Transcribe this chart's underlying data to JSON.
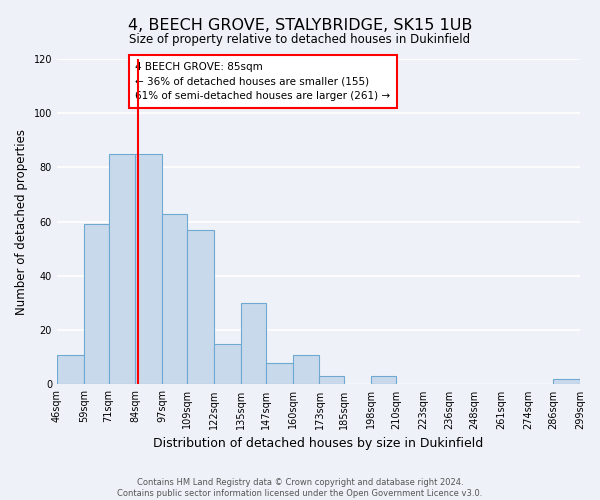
{
  "title": "4, BEECH GROVE, STALYBRIDGE, SK15 1UB",
  "subtitle": "Size of property relative to detached houses in Dukinfield",
  "xlabel": "Distribution of detached houses by size in Dukinfield",
  "ylabel": "Number of detached properties",
  "bar_edges": [
    46,
    59,
    71,
    84,
    97,
    109,
    122,
    135,
    147,
    160,
    173,
    185,
    198,
    210,
    223,
    236,
    248,
    261,
    274,
    286,
    299
  ],
  "bar_values": [
    11,
    59,
    85,
    85,
    63,
    57,
    15,
    30,
    8,
    11,
    3,
    0,
    3,
    0,
    0,
    0,
    0,
    0,
    0,
    2
  ],
  "bar_color": "#c9d9ec",
  "bar_edge_color": "#6fa8d0",
  "vline_x": 85,
  "vline_color": "red",
  "annotation_text": "4 BEECH GROVE: 85sqm\n← 36% of detached houses are smaller (155)\n61% of semi-detached houses are larger (261) →",
  "annotation_box_color": "white",
  "annotation_box_edge": "red",
  "ylim": [
    0,
    120
  ],
  "yticks": [
    0,
    20,
    40,
    60,
    80,
    100,
    120
  ],
  "tick_labels": [
    "46sqm",
    "59sqm",
    "71sqm",
    "84sqm",
    "97sqm",
    "109sqm",
    "122sqm",
    "135sqm",
    "147sqm",
    "160sqm",
    "173sqm",
    "185sqm",
    "198sqm",
    "210sqm",
    "223sqm",
    "236sqm",
    "248sqm",
    "261sqm",
    "274sqm",
    "286sqm",
    "299sqm"
  ],
  "footer_line1": "Contains HM Land Registry data © Crown copyright and database right 2024.",
  "footer_line2": "Contains public sector information licensed under the Open Government Licence v3.0.",
  "bg_color": "#eef2f8",
  "grid_color": "white",
  "figsize": [
    6.0,
    5.0
  ],
  "dpi": 100
}
